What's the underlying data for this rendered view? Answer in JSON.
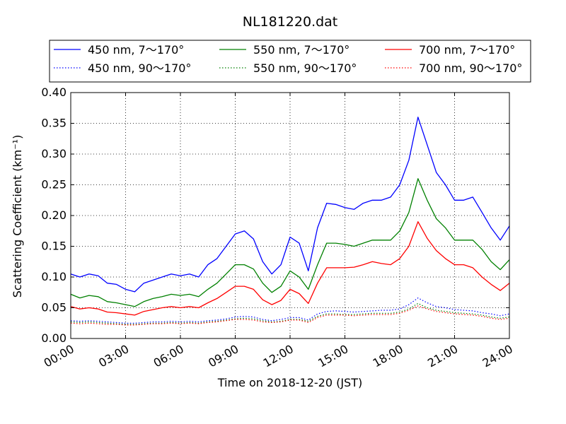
{
  "chart_data": {
    "type": "line",
    "title": "NL181220.dat",
    "xlabel": "Time on 2018-12-20 (JST)",
    "ylabel": "Scattering Coefficient (km⁻¹)",
    "xlim": [
      0,
      24
    ],
    "ylim": [
      0.0,
      0.4
    ],
    "grid": true,
    "legend_position": "top",
    "xticks": [
      0,
      3,
      6,
      9,
      12,
      15,
      18,
      21,
      24
    ],
    "xtick_labels": [
      "00:00",
      "03:00",
      "06:00",
      "09:00",
      "12:00",
      "15:00",
      "18:00",
      "21:00",
      "24:00"
    ],
    "yticks": [
      0.0,
      0.05,
      0.1,
      0.15,
      0.2,
      0.25,
      0.3,
      0.35,
      0.4
    ],
    "ytick_labels": [
      "0.00",
      "0.05",
      "0.10",
      "0.15",
      "0.20",
      "0.25",
      "0.30",
      "0.35",
      "0.40"
    ],
    "x_hours": [
      0,
      0.5,
      1,
      1.5,
      2,
      2.5,
      3,
      3.5,
      4,
      4.5,
      5,
      5.5,
      6,
      6.5,
      7,
      7.5,
      8,
      8.5,
      9,
      9.5,
      10,
      10.5,
      11,
      11.5,
      12,
      12.5,
      13,
      13.5,
      14,
      14.5,
      15,
      15.5,
      16,
      16.5,
      17,
      17.5,
      18,
      18.5,
      19,
      19.5,
      20,
      20.5,
      21,
      21.5,
      22,
      22.5,
      23,
      23.5,
      24
    ],
    "series": [
      {
        "name": "450 nm, 7～170°",
        "color": "#0000ff",
        "dash": "solid",
        "values": [
          0.105,
          0.1,
          0.105,
          0.102,
          0.09,
          0.088,
          0.08,
          0.076,
          0.09,
          0.095,
          0.1,
          0.105,
          0.102,
          0.105,
          0.1,
          0.12,
          0.13,
          0.15,
          0.17,
          0.175,
          0.162,
          0.125,
          0.105,
          0.12,
          0.165,
          0.155,
          0.11,
          0.18,
          0.22,
          0.218,
          0.213,
          0.21,
          0.22,
          0.225,
          0.225,
          0.23,
          0.25,
          0.29,
          0.36,
          0.315,
          0.27,
          0.25,
          0.225,
          0.225,
          0.23,
          0.205,
          0.18,
          0.16,
          0.183
        ]
      },
      {
        "name": "550 nm, 7～170°",
        "color": "#008000",
        "dash": "solid",
        "values": [
          0.072,
          0.066,
          0.07,
          0.068,
          0.06,
          0.058,
          0.055,
          0.052,
          0.06,
          0.065,
          0.068,
          0.072,
          0.07,
          0.072,
          0.068,
          0.08,
          0.09,
          0.105,
          0.12,
          0.12,
          0.113,
          0.09,
          0.075,
          0.085,
          0.11,
          0.1,
          0.08,
          0.12,
          0.155,
          0.155,
          0.153,
          0.15,
          0.155,
          0.16,
          0.16,
          0.16,
          0.175,
          0.205,
          0.26,
          0.225,
          0.195,
          0.18,
          0.16,
          0.16,
          0.16,
          0.145,
          0.125,
          0.112,
          0.128
        ]
      },
      {
        "name": "700 nm, 7～170°",
        "color": "#ff0000",
        "dash": "solid",
        "values": [
          0.052,
          0.048,
          0.05,
          0.048,
          0.043,
          0.042,
          0.04,
          0.038,
          0.044,
          0.047,
          0.05,
          0.052,
          0.05,
          0.052,
          0.05,
          0.058,
          0.065,
          0.075,
          0.085,
          0.085,
          0.08,
          0.063,
          0.055,
          0.062,
          0.08,
          0.073,
          0.057,
          0.09,
          0.115,
          0.115,
          0.115,
          0.116,
          0.12,
          0.125,
          0.122,
          0.12,
          0.13,
          0.15,
          0.19,
          0.163,
          0.143,
          0.13,
          0.12,
          0.12,
          0.115,
          0.1,
          0.088,
          0.078,
          0.09
        ]
      },
      {
        "name": "450 nm, 90～170°",
        "color": "#0000ff",
        "dash": "dotted",
        "values": [
          0.029,
          0.028,
          0.029,
          0.028,
          0.027,
          0.026,
          0.025,
          0.025,
          0.026,
          0.027,
          0.027,
          0.028,
          0.027,
          0.028,
          0.027,
          0.029,
          0.03,
          0.032,
          0.035,
          0.036,
          0.035,
          0.031,
          0.029,
          0.031,
          0.034,
          0.034,
          0.03,
          0.04,
          0.044,
          0.045,
          0.044,
          0.043,
          0.044,
          0.045,
          0.046,
          0.046,
          0.048,
          0.055,
          0.066,
          0.058,
          0.052,
          0.05,
          0.047,
          0.046,
          0.045,
          0.042,
          0.04,
          0.037,
          0.04
        ]
      },
      {
        "name": "550 nm, 90～170°",
        "color": "#008000",
        "dash": "dotted",
        "values": [
          0.027,
          0.026,
          0.027,
          0.026,
          0.025,
          0.024,
          0.023,
          0.023,
          0.024,
          0.025,
          0.025,
          0.026,
          0.025,
          0.026,
          0.025,
          0.027,
          0.028,
          0.03,
          0.032,
          0.033,
          0.032,
          0.029,
          0.027,
          0.028,
          0.031,
          0.031,
          0.028,
          0.036,
          0.04,
          0.04,
          0.039,
          0.039,
          0.04,
          0.041,
          0.041,
          0.041,
          0.043,
          0.048,
          0.057,
          0.05,
          0.046,
          0.044,
          0.042,
          0.041,
          0.04,
          0.038,
          0.035,
          0.033,
          0.035
        ]
      },
      {
        "name": "700 nm, 90～170°",
        "color": "#ff0000",
        "dash": "dotted",
        "values": [
          0.025,
          0.024,
          0.025,
          0.024,
          0.023,
          0.023,
          0.022,
          0.022,
          0.023,
          0.024,
          0.024,
          0.025,
          0.024,
          0.025,
          0.024,
          0.026,
          0.027,
          0.029,
          0.031,
          0.031,
          0.03,
          0.027,
          0.026,
          0.027,
          0.03,
          0.03,
          0.026,
          0.034,
          0.038,
          0.038,
          0.038,
          0.037,
          0.038,
          0.039,
          0.039,
          0.039,
          0.041,
          0.046,
          0.053,
          0.048,
          0.044,
          0.042,
          0.04,
          0.039,
          0.038,
          0.036,
          0.033,
          0.031,
          0.033
        ]
      }
    ]
  }
}
